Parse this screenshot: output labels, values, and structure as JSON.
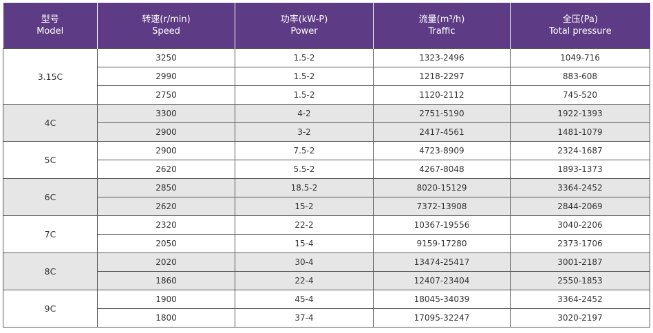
{
  "header": {
    "model": {
      "cn": "型号",
      "en": "Model"
    },
    "speed": {
      "cn": "转速(r/min)",
      "en": "Speed"
    },
    "power": {
      "cn": "功率(kW-P)",
      "en": "Power"
    },
    "traffic": {
      "cn": "流量(m³/h)",
      "en": "Traffic"
    },
    "pressure": {
      "cn": "全压(Pa)",
      "en": "Total pressure"
    }
  },
  "groups": [
    {
      "model": "3.15C",
      "rows": [
        {
          "speed": "3250",
          "power": "1.5-2",
          "traffic": "1323-2496",
          "pressure": "1049-716"
        },
        {
          "speed": "2990",
          "power": "1.5-2",
          "traffic": "1218-2297",
          "pressure": "883-608"
        },
        {
          "speed": "2750",
          "power": "1.5-2",
          "traffic": "1120-2112",
          "pressure": "745-520"
        }
      ]
    },
    {
      "model": "4C",
      "rows": [
        {
          "speed": "3300",
          "power": "4-2",
          "traffic": "2751-5190",
          "pressure": "1922-1393"
        },
        {
          "speed": "2900",
          "power": "3-2",
          "traffic": "2417-4561",
          "pressure": "1481-1079"
        }
      ]
    },
    {
      "model": "5C",
      "rows": [
        {
          "speed": "2900",
          "power": "7.5-2",
          "traffic": "4723-8909",
          "pressure": "2324-1687"
        },
        {
          "speed": "2620",
          "power": "5.5-2",
          "traffic": "4267-8048",
          "pressure": "1893-1373"
        }
      ]
    },
    {
      "model": "6C",
      "rows": [
        {
          "speed": "2850",
          "power": "18.5-2",
          "traffic": "8020-15129",
          "pressure": "3364-2452"
        },
        {
          "speed": "2620",
          "power": "15-2",
          "traffic": "7372-13908",
          "pressure": "2844-2069"
        }
      ]
    },
    {
      "model": "7C",
      "rows": [
        {
          "speed": "2320",
          "power": "22-2",
          "traffic": "10367-19556",
          "pressure": "3040-2206"
        },
        {
          "speed": "2050",
          "power": "15-4",
          "traffic": "9159-17280",
          "pressure": "2373-1706"
        }
      ]
    },
    {
      "model": "8C",
      "rows": [
        {
          "speed": "2020",
          "power": "30-4",
          "traffic": "13474-25417",
          "pressure": "3001-2187"
        },
        {
          "speed": "1860",
          "power": "22-4",
          "traffic": "12407-23404",
          "pressure": "2550-1853"
        }
      ]
    },
    {
      "model": "9C",
      "rows": [
        {
          "speed": "1900",
          "power": "45-4",
          "traffic": "18045-34039",
          "pressure": "3364-2452"
        },
        {
          "speed": "1800",
          "power": "37-4",
          "traffic": "17095-32247",
          "pressure": "3020-2197"
        }
      ]
    }
  ],
  "colors": {
    "header_bg": "#5e3c85",
    "shade": "#e6e6e6",
    "border": "#555555"
  }
}
